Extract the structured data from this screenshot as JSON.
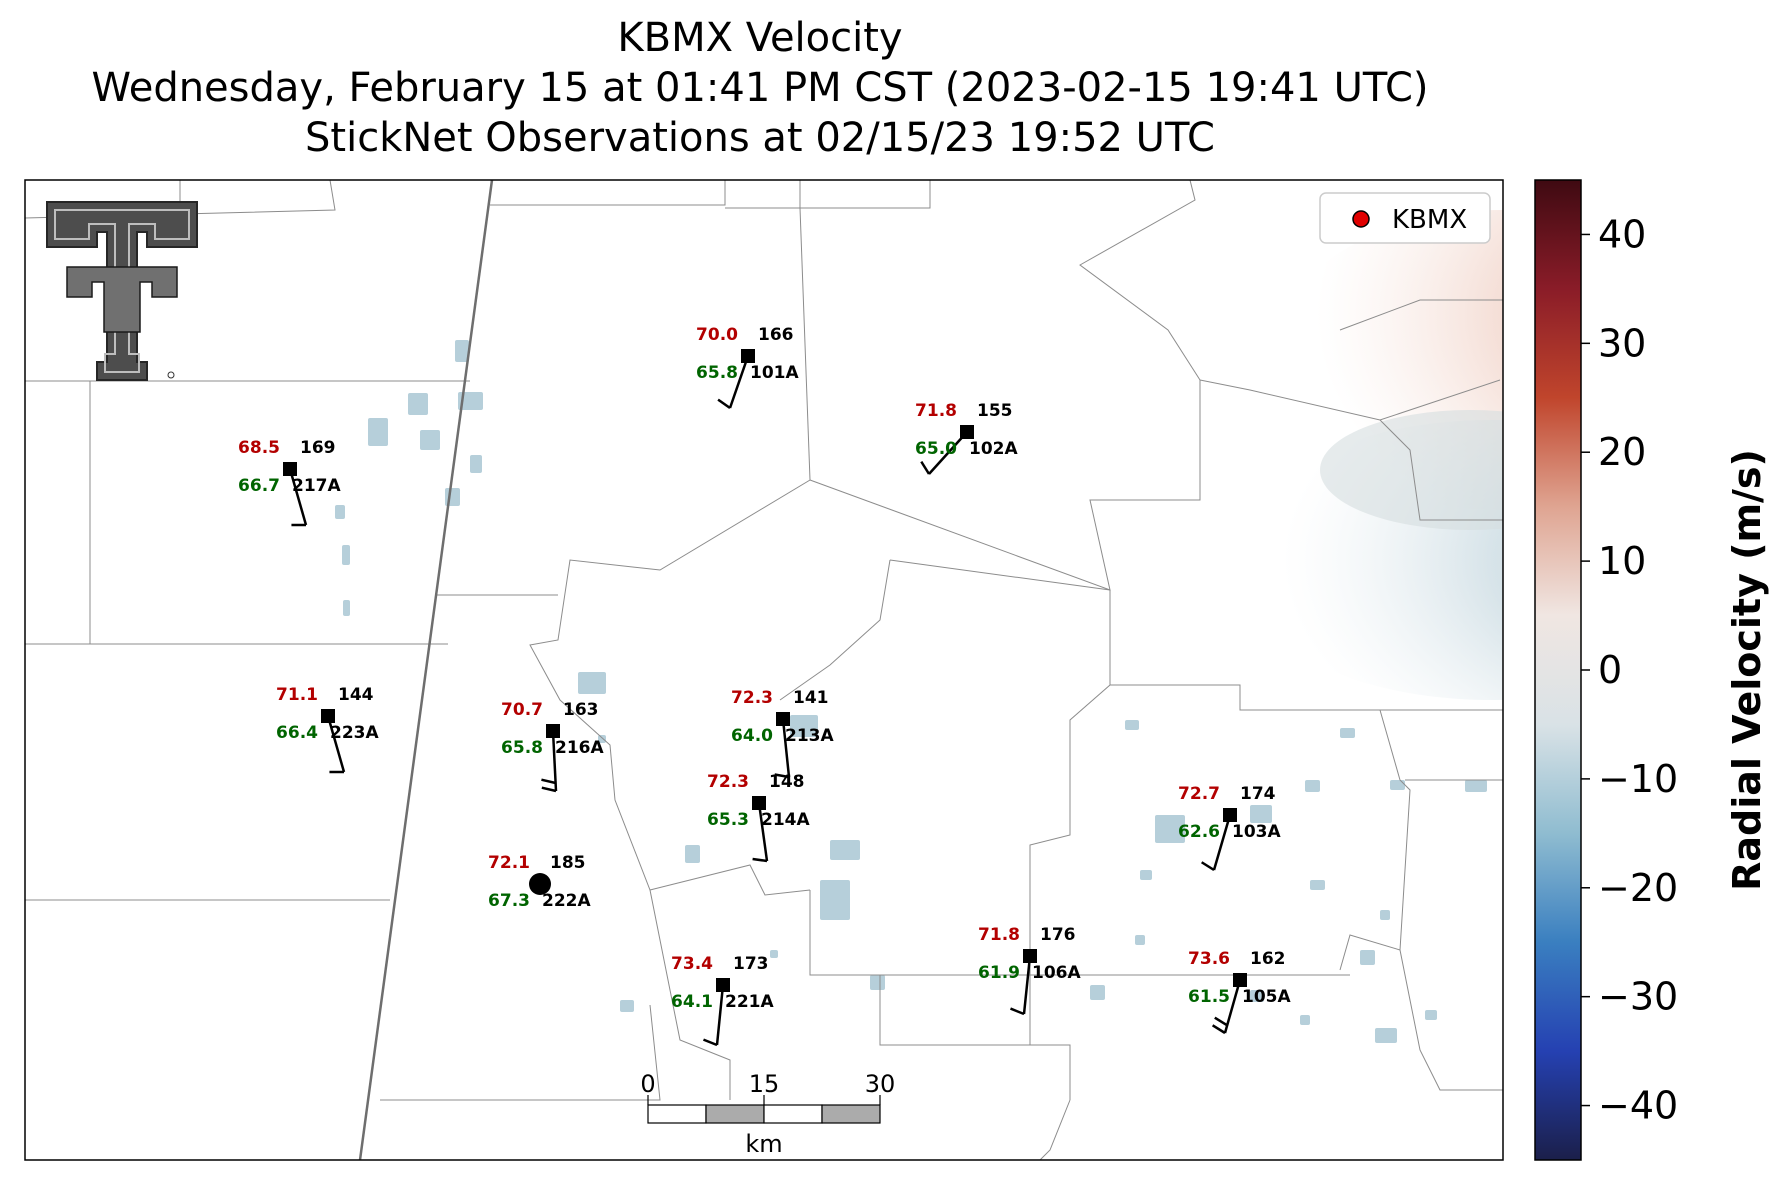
{
  "title": {
    "line1": "KBMX Velocity",
    "line2": "Wednesday, February 15 at 01:41 PM CST (2023-02-15 19:41 UTC)",
    "line3": "StickNet Observations at 02/15/23 19:52 UTC"
  },
  "legend": {
    "label": "KBMX",
    "marker_color": "#e00000"
  },
  "colorbar": {
    "label": "Radial Velocity (m/s)",
    "ticks": [
      "40",
      "30",
      "20",
      "10",
      "0",
      "−10",
      "−20",
      "−30",
      "−40"
    ],
    "range": [
      -45,
      45
    ],
    "colors": [
      "#1b1f4a",
      "#2541b2",
      "#3a7fc0",
      "#8fbcd0",
      "#d9e2e6",
      "#f0e6e2",
      "#dfa491",
      "#c0452c",
      "#8a1c28",
      "#3f0a12"
    ]
  },
  "scale_bar": {
    "ticks": [
      "0",
      "15",
      "30"
    ],
    "unit": "km"
  },
  "logo": {
    "name": "Texas Tech Double T logo"
  },
  "stations": [
    {
      "id": "101A",
      "temp": "70.0",
      "dew": "65.8",
      "pressure": "166"
    },
    {
      "id": "102A",
      "temp": "71.8",
      "dew": "65.0",
      "pressure": "155"
    },
    {
      "id": "217A",
      "temp": "68.5",
      "dew": "66.7",
      "pressure": "169"
    },
    {
      "id": "223A",
      "temp": "71.1",
      "dew": "66.4",
      "pressure": "144"
    },
    {
      "id": "216A",
      "temp": "70.7",
      "dew": "65.8",
      "pressure": "163"
    },
    {
      "id": "213A",
      "temp": "72.3",
      "dew": "64.0",
      "pressure": "141"
    },
    {
      "id": "214A",
      "temp": "72.3",
      "dew": "65.3",
      "pressure": "148"
    },
    {
      "id": "222A",
      "temp": "72.1",
      "dew": "67.3",
      "pressure": "185"
    },
    {
      "id": "221A",
      "temp": "73.4",
      "dew": "64.1",
      "pressure": "173"
    },
    {
      "id": "106A",
      "temp": "71.8",
      "dew": "61.9",
      "pressure": "176"
    },
    {
      "id": "103A",
      "temp": "72.7",
      "dew": "62.6",
      "pressure": "174"
    },
    {
      "id": "105A",
      "temp": "73.6",
      "dew": "61.5",
      "pressure": "162"
    }
  ]
}
